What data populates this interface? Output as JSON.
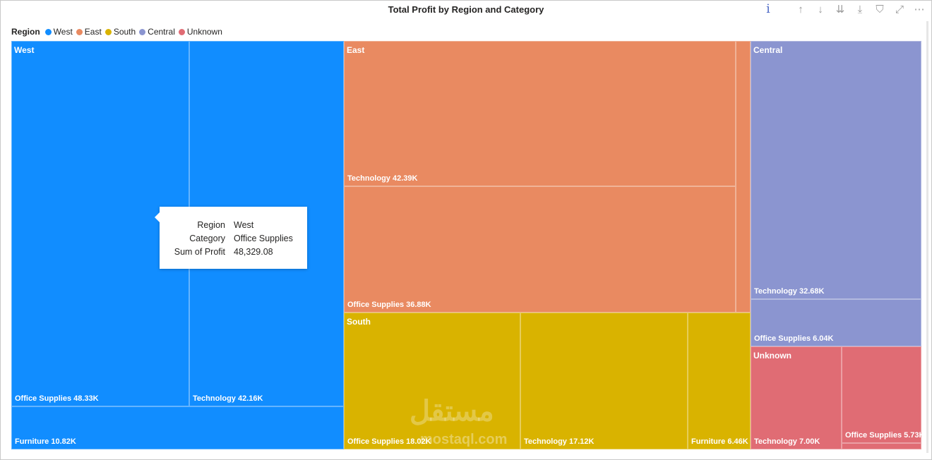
{
  "header": {
    "title": "Total Profit by Region and Category",
    "toolbar": {
      "info_icon": "i",
      "drill_up_icon": "↑",
      "drill_down_icon": "↓",
      "expand_next_icon": "⇊",
      "expand_hierarchy_icon": "⤓",
      "filter_icon": "⛉",
      "focus_icon": "⤢",
      "more_icon": "⋯"
    }
  },
  "legend": {
    "title": "Region",
    "items": [
      {
        "label": "West",
        "color": "#118DFF"
      },
      {
        "label": "East",
        "color": "#E98A61"
      },
      {
        "label": "South",
        "color": "#D9B300"
      },
      {
        "label": "Central",
        "color": "#8B95D0"
      },
      {
        "label": "Unknown",
        "color": "#E06C74"
      }
    ]
  },
  "chart_data": {
    "type": "treemap",
    "title": "Total Profit by Region and Category",
    "groups": [
      {
        "region": "West",
        "color": "#118DFF",
        "children": [
          {
            "category": "Office Supplies",
            "label": "Office Supplies 48.33K",
            "value": 48329.08
          },
          {
            "category": "Technology",
            "label": "Technology 42.16K",
            "value": 42160
          },
          {
            "category": "Furniture",
            "label": "Furniture 10.82K",
            "value": 10820
          }
        ]
      },
      {
        "region": "East",
        "color": "#E98A61",
        "children": [
          {
            "category": "Technology",
            "label": "Technology 42.39K",
            "value": 42390
          },
          {
            "category": "Office Supplies",
            "label": "Office Supplies 36.88K",
            "value": 36880
          },
          {
            "category": "Furniture",
            "label": "",
            "value": 3000
          }
        ]
      },
      {
        "region": "South",
        "color": "#D9B300",
        "children": [
          {
            "category": "Office Supplies",
            "label": "Office Supplies 18.02K",
            "value": 18020
          },
          {
            "category": "Technology",
            "label": "Technology 17.12K",
            "value": 17120
          },
          {
            "category": "Furniture",
            "label": "Furniture 6.46K",
            "value": 6460
          }
        ]
      },
      {
        "region": "Central",
        "color": "#8B95D0",
        "children": [
          {
            "category": "Technology",
            "label": "Technology 32.68K",
            "value": 32680
          },
          {
            "category": "Office Supplies",
            "label": "Office Supplies 6.04K",
            "value": 6040
          }
        ]
      },
      {
        "region": "Unknown",
        "color": "#E06C74",
        "children": [
          {
            "category": "Technology",
            "label": "Technology 7.00K",
            "value": 7000
          },
          {
            "category": "Office Supplies",
            "label": "Office Supplies 5.73K",
            "value": 5730
          },
          {
            "category": "Furniture",
            "label": "",
            "value": 300
          }
        ]
      }
    ]
  },
  "tooltip": {
    "rows": [
      {
        "key": "Region",
        "value": "West"
      },
      {
        "key": "Category",
        "value": "Office Supplies"
      },
      {
        "key": "Sum of Profit",
        "value": "48,329.08"
      }
    ]
  },
  "watermark": {
    "text": "مستقل",
    "sub": "mostaql.com"
  }
}
